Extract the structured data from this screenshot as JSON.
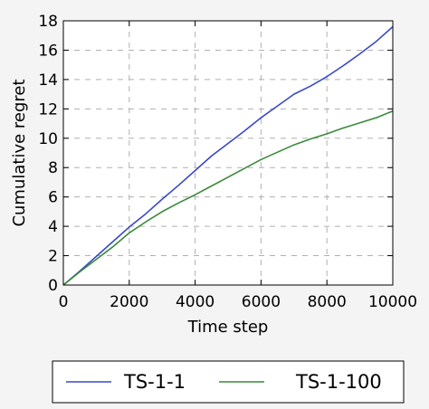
{
  "chart_data": {
    "type": "line",
    "xlabel": "Time step",
    "ylabel": "Cumulative regret",
    "xlim": [
      0,
      10000
    ],
    "ylim": [
      0,
      18
    ],
    "xticks": [
      0,
      2000,
      4000,
      6000,
      8000,
      10000
    ],
    "yticks": [
      0,
      2,
      4,
      6,
      8,
      10,
      12,
      14,
      16,
      18
    ],
    "grid": true,
    "legend_position": "bottom-outside",
    "series": [
      {
        "name": "TS-1-1",
        "color": "#3a48c8",
        "x": [
          0,
          500,
          1000,
          1500,
          2000,
          2500,
          3000,
          3500,
          4000,
          4500,
          5000,
          5500,
          6000,
          6500,
          7000,
          7500,
          8000,
          8500,
          9000,
          9500,
          10000
        ],
        "values": [
          0,
          0.95,
          1.95,
          2.95,
          3.95,
          4.85,
          5.85,
          6.8,
          7.8,
          8.8,
          9.65,
          10.5,
          11.4,
          12.2,
          13.0,
          13.55,
          14.2,
          14.95,
          15.75,
          16.6,
          17.6
        ]
      },
      {
        "name": "TS-1-100",
        "color": "#3a8a3a",
        "x": [
          0,
          500,
          1000,
          1500,
          2000,
          2500,
          3000,
          3500,
          4000,
          4500,
          5000,
          5500,
          6000,
          6500,
          7000,
          7500,
          8000,
          8500,
          9000,
          9500,
          10000
        ],
        "values": [
          0,
          0.9,
          1.75,
          2.6,
          3.55,
          4.3,
          5.0,
          5.6,
          6.15,
          6.75,
          7.35,
          7.95,
          8.55,
          9.05,
          9.55,
          9.95,
          10.3,
          10.7,
          11.05,
          11.4,
          11.85
        ]
      }
    ]
  }
}
